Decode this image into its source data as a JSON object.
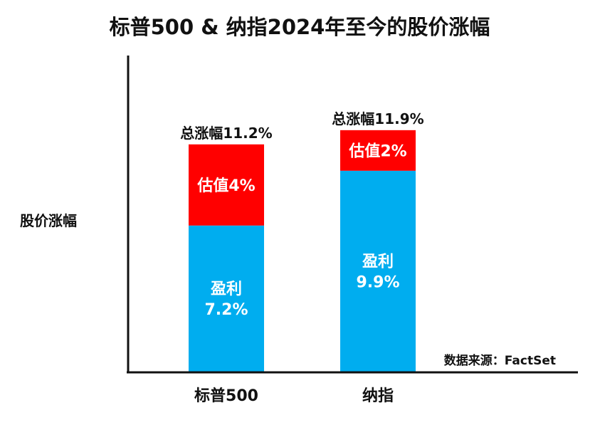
{
  "colors": {
    "earnings": "#00adef",
    "valuation": "#ff0000",
    "axis": "#111111",
    "text": "#111111",
    "segment_text": "#ffffff"
  },
  "chart_data": {
    "type": "bar",
    "stacked": true,
    "title": "标普500 & 纳指2024年至今的股价涨幅",
    "ylabel": "股价涨幅",
    "xlabel": "",
    "source": "数据来源：FactSet",
    "ylim": [
      0,
      15
    ],
    "categories": [
      "标普500",
      "纳指"
    ],
    "series": [
      {
        "name": "盈利",
        "color": "#00adef",
        "values": [
          7.2,
          9.9
        ],
        "labels": [
          [
            "盈利",
            "7.2%"
          ],
          [
            "盈利",
            "9.9%"
          ]
        ]
      },
      {
        "name": "估值",
        "color": "#ff0000",
        "values": [
          4,
          2
        ],
        "labels": [
          [
            "估值4%"
          ],
          [
            "估值2%"
          ]
        ]
      }
    ],
    "totals": [
      11.2,
      11.9
    ],
    "total_labels": [
      "总涨幅11.2%",
      "总涨幅11.9%"
    ]
  }
}
